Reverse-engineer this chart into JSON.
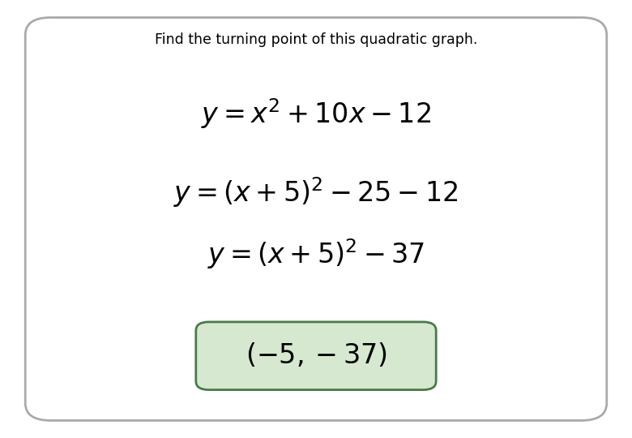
{
  "title": "Find the turning point of this quadratic graph.",
  "title_fontsize": 12.5,
  "eq1": "$y = x^2 + 10x - 12$",
  "eq2": "$y = (x + 5)^2 - 25 - 12$",
  "eq3": "$y = (x + 5)^2 - 37$",
  "answer": "$(-5, -37)$",
  "eq_fontsize": 24,
  "answer_fontsize": 24,
  "bg_color": "#ffffff",
  "border_color": "#aaaaaa",
  "answer_box_facecolor": "#d6e8d0",
  "answer_box_edgecolor": "#4a7a4a",
  "fig_width": 7.8,
  "fig_height": 5.4,
  "dpi": 100
}
